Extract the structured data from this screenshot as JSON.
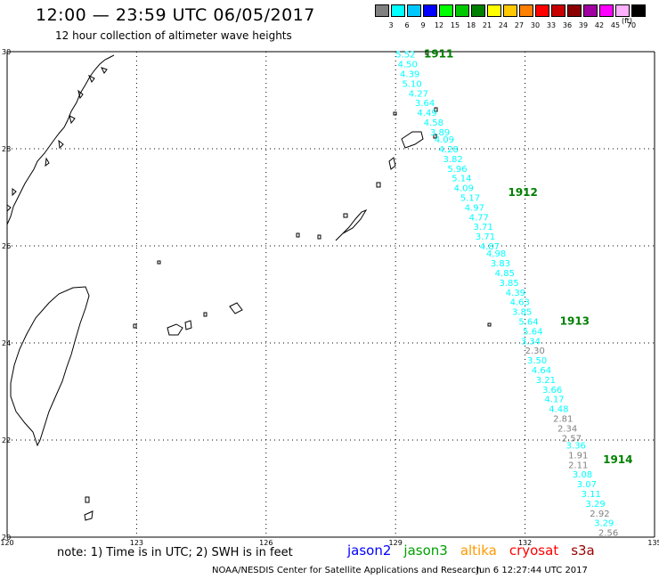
{
  "title": "12:00 — 23:59 UTC 06/05/2017",
  "subtitle": "12 hour collection of altimeter wave heights",
  "legend": {
    "unit": "(ft)",
    "bins": [
      {
        "label": "3",
        "color": "#808080"
      },
      {
        "label": "6",
        "color": "#00ffff"
      },
      {
        "label": "9",
        "color": "#00c8ff"
      },
      {
        "label": "12",
        "color": "#0000ff"
      },
      {
        "label": "15",
        "color": "#00ff00"
      },
      {
        "label": "18",
        "color": "#00c800"
      },
      {
        "label": "21",
        "color": "#008000"
      },
      {
        "label": "24",
        "color": "#ffff00"
      },
      {
        "label": "27",
        "color": "#ffc800"
      },
      {
        "label": "30",
        "color": "#ff8000"
      },
      {
        "label": "33",
        "color": "#ff0000"
      },
      {
        "label": "36",
        "color": "#c80000"
      },
      {
        "label": "39",
        "color": "#8b0000"
      },
      {
        "label": "42",
        "color": "#a000a0"
      },
      {
        "label": "45",
        "color": "#ff00ff"
      },
      {
        "label": "70",
        "color": "#ffb0ff"
      },
      {
        "label": "",
        "color": "#000000"
      }
    ]
  },
  "axes": {
    "lon_min": 120,
    "lon_max": 135,
    "lat_min": 20,
    "lat_max": 30,
    "lon_ticks": [
      {
        "v": 120,
        "t": "120"
      },
      {
        "v": 123,
        "t": "123"
      },
      {
        "v": 126,
        "t": "126"
      },
      {
        "v": 129,
        "t": "129"
      },
      {
        "v": 132,
        "t": "132"
      },
      {
        "v": 135,
        "t": "135"
      }
    ],
    "lat_ticks": [
      {
        "v": 30,
        "t": "30"
      },
      {
        "v": 28,
        "t": "28"
      },
      {
        "v": 26,
        "t": "26"
      },
      {
        "v": 24,
        "t": "24"
      },
      {
        "v": 22,
        "t": "22"
      },
      {
        "v": 20,
        "t": "20"
      }
    ]
  },
  "passes": [
    {
      "label": "1911",
      "lon": 130.0,
      "lat": 29.95
    },
    {
      "label": "1912",
      "lon": 131.95,
      "lat": 27.1
    },
    {
      "label": "1913",
      "lon": 133.15,
      "lat": 24.45
    },
    {
      "label": "1914",
      "lon": 134.15,
      "lat": 21.6
    }
  ],
  "measurements": [
    {
      "v": "5.52",
      "lon": 129.0,
      "lat": 29.95,
      "c": "#00ffff"
    },
    {
      "v": "4.50",
      "lon": 129.05,
      "lat": 29.75,
      "c": "#00ffff"
    },
    {
      "v": "4.39",
      "lon": 129.1,
      "lat": 29.55,
      "c": "#00ffff"
    },
    {
      "v": "5.10",
      "lon": 129.15,
      "lat": 29.35,
      "c": "#00ffff"
    },
    {
      "v": "4.27",
      "lon": 129.3,
      "lat": 29.15,
      "c": "#00ffff"
    },
    {
      "v": "3.64",
      "lon": 129.45,
      "lat": 28.95,
      "c": "#00ffff"
    },
    {
      "v": "4.49",
      "lon": 129.5,
      "lat": 28.75,
      "c": "#00ffff"
    },
    {
      "v": "4.58",
      "lon": 129.65,
      "lat": 28.55,
      "c": "#00ffff"
    },
    {
      "v": "3.89",
      "lon": 129.8,
      "lat": 28.35,
      "c": "#00ffff"
    },
    {
      "v": "4.09",
      "lon": 129.9,
      "lat": 28.2,
      "c": "#00ffff"
    },
    {
      "v": "4.28",
      "lon": 130.0,
      "lat": 28.0,
      "c": "#00ffff"
    },
    {
      "v": "3.82",
      "lon": 130.1,
      "lat": 27.8,
      "c": "#00ffff"
    },
    {
      "v": "5.96",
      "lon": 130.2,
      "lat": 27.6,
      "c": "#00ffff"
    },
    {
      "v": "5.14",
      "lon": 130.3,
      "lat": 27.4,
      "c": "#00ffff"
    },
    {
      "v": "4.09",
      "lon": 130.35,
      "lat": 27.2,
      "c": "#00ffff"
    },
    {
      "v": "5.17",
      "lon": 130.5,
      "lat": 27.0,
      "c": "#00ffff"
    },
    {
      "v": "4.97",
      "lon": 130.6,
      "lat": 26.8,
      "c": "#00ffff"
    },
    {
      "v": "4.77",
      "lon": 130.7,
      "lat": 26.6,
      "c": "#00ffff"
    },
    {
      "v": "3.71",
      "lon": 130.8,
      "lat": 26.4,
      "c": "#00ffff"
    },
    {
      "v": "3.71",
      "lon": 130.85,
      "lat": 26.2,
      "c": "#00ffff"
    },
    {
      "v": "4.87",
      "lon": 130.95,
      "lat": 26.0,
      "c": "#00ffff"
    },
    {
      "v": "4.98",
      "lon": 131.1,
      "lat": 25.85,
      "c": "#00ffff"
    },
    {
      "v": "3.83",
      "lon": 131.2,
      "lat": 25.65,
      "c": "#00ffff"
    },
    {
      "v": "4.85",
      "lon": 131.3,
      "lat": 25.45,
      "c": "#00ffff"
    },
    {
      "v": "3.85",
      "lon": 131.4,
      "lat": 25.25,
      "c": "#00ffff"
    },
    {
      "v": "4.39",
      "lon": 131.55,
      "lat": 25.05,
      "c": "#00ffff"
    },
    {
      "v": "4.63",
      "lon": 131.65,
      "lat": 24.85,
      "c": "#00ffff"
    },
    {
      "v": "3.85",
      "lon": 131.7,
      "lat": 24.65,
      "c": "#00ffff"
    },
    {
      "v": "5.64",
      "lon": 131.85,
      "lat": 24.45,
      "c": "#00ffff"
    },
    {
      "v": "5.64",
      "lon": 131.95,
      "lat": 24.25,
      "c": "#00ffff"
    },
    {
      "v": "3.34",
      "lon": 131.9,
      "lat": 24.05,
      "c": "#00ffff"
    },
    {
      "v": "2.30",
      "lon": 132.0,
      "lat": 23.85,
      "c": "#808080"
    },
    {
      "v": "3.50",
      "lon": 132.05,
      "lat": 23.65,
      "c": "#00ffff"
    },
    {
      "v": "4.64",
      "lon": 132.15,
      "lat": 23.45,
      "c": "#00ffff"
    },
    {
      "v": "3.21",
      "lon": 132.25,
      "lat": 23.25,
      "c": "#00ffff"
    },
    {
      "v": "3.66",
      "lon": 132.4,
      "lat": 23.05,
      "c": "#00ffff"
    },
    {
      "v": "4.17",
      "lon": 132.45,
      "lat": 22.85,
      "c": "#00ffff"
    },
    {
      "v": "4.48",
      "lon": 132.55,
      "lat": 22.65,
      "c": "#00ffff"
    },
    {
      "v": "2.81",
      "lon": 132.65,
      "lat": 22.45,
      "c": "#808080"
    },
    {
      "v": "2.34",
      "lon": 132.75,
      "lat": 22.25,
      "c": "#808080"
    },
    {
      "v": "2.57",
      "lon": 132.85,
      "lat": 22.05,
      "c": "#808080"
    },
    {
      "v": "3.36",
      "lon": 132.95,
      "lat": 21.9,
      "c": "#00ffff"
    },
    {
      "v": "1.91",
      "lon": 133.0,
      "lat": 21.7,
      "c": "#808080"
    },
    {
      "v": "2.11",
      "lon": 133.0,
      "lat": 21.5,
      "c": "#808080"
    },
    {
      "v": "3.08",
      "lon": 133.1,
      "lat": 21.3,
      "c": "#00ffff"
    },
    {
      "v": "3.07",
      "lon": 133.2,
      "lat": 21.1,
      "c": "#00ffff"
    },
    {
      "v": "3.11",
      "lon": 133.3,
      "lat": 20.9,
      "c": "#00ffff"
    },
    {
      "v": "3.29",
      "lon": 133.4,
      "lat": 20.7,
      "c": "#00ffff"
    },
    {
      "v": "2.92",
      "lon": 133.5,
      "lat": 20.5,
      "c": "#808080"
    },
    {
      "v": "3.29",
      "lon": 133.6,
      "lat": 20.3,
      "c": "#00ffff"
    },
    {
      "v": "2.56",
      "lon": 133.7,
      "lat": 20.1,
      "c": "#808080"
    }
  ],
  "note": "note: 1) Time is in UTC; 2) SWH is in feet",
  "satellites": [
    {
      "name": "jason2",
      "color": "#0000ff"
    },
    {
      "name": "jason3",
      "color": "#00a000"
    },
    {
      "name": "altika",
      "color": "#ff9900"
    },
    {
      "name": "cryosat",
      "color": "#ff0000"
    },
    {
      "name": "s3a",
      "color": "#990000"
    }
  ],
  "credit": "NOAA/NESDIS Center for Satellite Applications and Research",
  "timestamp": "Jun  6 12:27:44 UTC 2017"
}
